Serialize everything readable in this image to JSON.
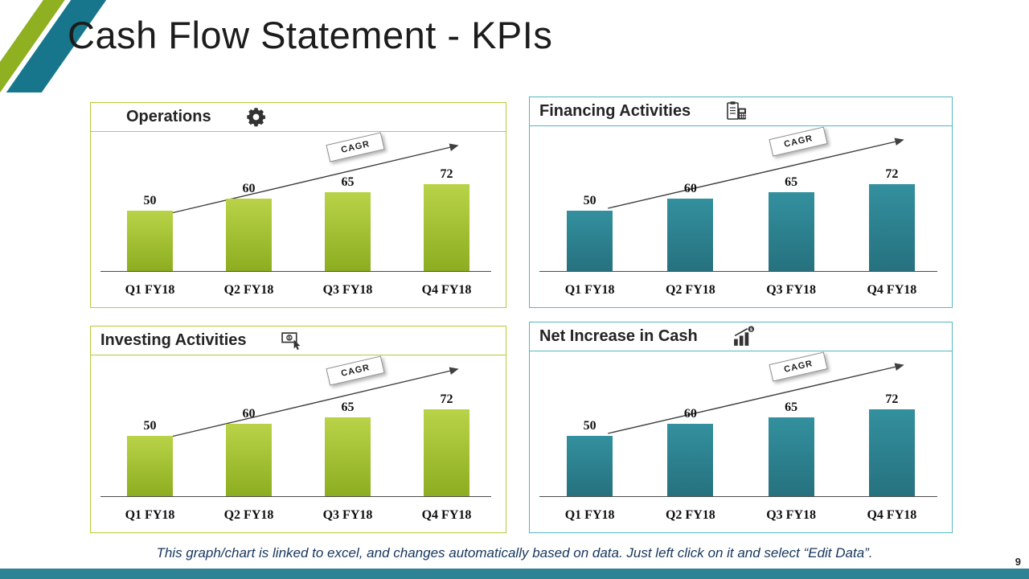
{
  "slide": {
    "title": "Cash Flow Statement - KPIs",
    "page_number": "9",
    "footer_note": "This graph/chart is linked to excel, and changes automatically based on data. Just left click on it and select “Edit Data”."
  },
  "colors": {
    "footer_bar": "#2d8294",
    "stripe_green": "#8fb021",
    "stripe_teal": "#17768c",
    "arrow": "#3f3f3f",
    "green_accent": "#b5cc39",
    "teal_accent": "#56b6c4"
  },
  "chart_data": [
    {
      "type": "bar",
      "title": "Operations",
      "icon": "gear-icon",
      "categories": [
        "Q1 FY18",
        "Q2 FY18",
        "Q3 FY18",
        "Q4 FY18"
      ],
      "values": [
        50,
        60,
        65,
        72
      ],
      "annotation": "CAGR",
      "trend": "rising-arrow",
      "accent": "#b5cc39",
      "bar_top": "#b9d348",
      "bar_bottom": "#8dad20",
      "ylim": [
        0,
        80
      ],
      "grid": false,
      "legend": "none"
    },
    {
      "type": "bar",
      "title": "Financing Activities",
      "icon": "checklist-calculator-icon",
      "categories": [
        "Q1 FY18",
        "Q2 FY18",
        "Q3 FY18",
        "Q4 FY18"
      ],
      "values": [
        50,
        60,
        65,
        72
      ],
      "annotation": "CAGR",
      "trend": "rising-arrow",
      "accent": "#56b6c4",
      "bar_top": "#33909e",
      "bar_bottom": "#26717f",
      "ylim": [
        0,
        80
      ],
      "grid": false,
      "legend": "none"
    },
    {
      "type": "bar",
      "title": "Investing Activities",
      "icon": "money-click-icon",
      "categories": [
        "Q1 FY18",
        "Q2 FY18",
        "Q3 FY18",
        "Q4 FY18"
      ],
      "values": [
        50,
        60,
        65,
        72
      ],
      "annotation": "CAGR",
      "trend": "rising-arrow",
      "accent": "#b5cc39",
      "bar_top": "#b9d348",
      "bar_bottom": "#8dad20",
      "ylim": [
        0,
        80
      ],
      "grid": false,
      "legend": "none"
    },
    {
      "type": "bar",
      "title": "Net Increase in Cash",
      "icon": "growth-chart-icon",
      "categories": [
        "Q1 FY18",
        "Q2 FY18",
        "Q3 FY18",
        "Q4 FY18"
      ],
      "values": [
        50,
        60,
        65,
        72
      ],
      "annotation": "CAGR",
      "trend": "rising-arrow",
      "accent": "#56b6c4",
      "bar_top": "#33909e",
      "bar_bottom": "#26717f",
      "ylim": [
        0,
        80
      ],
      "grid": false,
      "legend": "none"
    }
  ]
}
